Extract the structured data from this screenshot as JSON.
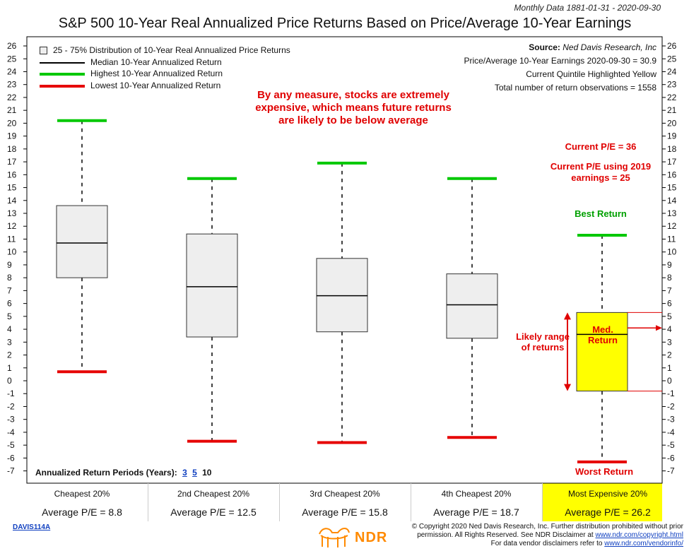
{
  "header": {
    "monthly_data": "Monthly Data 1881-01-31 - 2020-09-30",
    "title": "S&P 500 10-Year Real Annualized Price Returns Based on Price/Average 10-Year Earnings"
  },
  "legend": [
    {
      "label": "25 - 75% Distribution of 10-Year Real Annualized Price Returns",
      "kind": "box"
    },
    {
      "label": "Median 10-Year Annualized Return",
      "kind": "median"
    },
    {
      "label": "Highest 10-Year Annualized Return",
      "kind": "high"
    },
    {
      "label": "Lowest 10-Year Annualized Return",
      "kind": "low"
    }
  ],
  "source": {
    "label": "Source:",
    "value": "Ned Davis Research, Inc",
    "line2": "Price/Average 10-Year Earnings 2020-09-30 = 30.9",
    "line3": "Current Quintile Highlighted Yellow",
    "line4": "Total number of return observations = 1558"
  },
  "annotations": {
    "main_note": "By any measure, stocks are extremely expensive, which means future returns are likely to be below average",
    "current_pe": "Current P/E = 36",
    "current_pe_2019": "Current P/E using 2019 earnings = 25",
    "best_return": "Best Return",
    "med_return": "Med. Return",
    "likely_range": "Likely range of returns",
    "worst_return": "Worst Return"
  },
  "periods": {
    "label": "Annualized Return Periods (Years):",
    "options": [
      "3",
      "5",
      "10"
    ]
  },
  "footer": {
    "davis_id": "DAVIS114A",
    "ndr": "NDR",
    "copyright_1": "© Copyright 2020 Ned Davis Research, Inc. Further distribution prohibited without prior",
    "copyright_2": "permission. All Rights Reserved. See NDR Disclaimer at",
    "copyright_2_link": "www.ndr.com/copyright.html",
    "copyright_3": "For data vendor disclaimers refer to",
    "copyright_3_link": "www.ndr.com/vendorinfo/"
  },
  "colors": {
    "box_fill": "#eeeeee",
    "highlight": "#ffff00",
    "high": "#00c800",
    "low": "#e60000",
    "median": "#000000",
    "annotation_red": "#e00000"
  },
  "chart_data": {
    "type": "box",
    "title": "S&P 500 10-Year Real Annualized Price Returns Based on Price/Average 10-Year Earnings",
    "ylim": [
      -7,
      26
    ],
    "yticks": [
      -7,
      -6,
      -5,
      -4,
      -3,
      -2,
      -1,
      0,
      1,
      2,
      3,
      4,
      5,
      6,
      7,
      8,
      9,
      10,
      11,
      12,
      13,
      14,
      15,
      16,
      17,
      18,
      19,
      20,
      21,
      22,
      23,
      24,
      25,
      26
    ],
    "categories": [
      {
        "name": "Cheapest 20%",
        "avg_pe": "Average P/E = 8.8",
        "high": 20.2,
        "q3": 13.6,
        "median": 10.7,
        "q1": 8.0,
        "low": 0.7,
        "highlight": false
      },
      {
        "name": "2nd Cheapest 20%",
        "avg_pe": "Average P/E = 12.5",
        "high": 15.7,
        "q3": 11.4,
        "median": 7.3,
        "q1": 3.4,
        "low": -4.7,
        "highlight": false
      },
      {
        "name": "3rd Cheapest 20%",
        "avg_pe": "Average P/E = 15.8",
        "high": 16.9,
        "q3": 9.5,
        "median": 6.6,
        "q1": 3.8,
        "low": -4.8,
        "highlight": false
      },
      {
        "name": "4th Cheapest 20%",
        "avg_pe": "Average P/E = 18.7",
        "high": 15.7,
        "q3": 8.3,
        "median": 5.9,
        "q1": 3.3,
        "low": -4.4,
        "highlight": false
      },
      {
        "name": "Most Expensive 20%",
        "avg_pe": "Average P/E = 26.2",
        "high": 11.3,
        "q3": 5.3,
        "median": 3.6,
        "q1": -0.8,
        "low": -6.3,
        "highlight": true
      }
    ]
  }
}
